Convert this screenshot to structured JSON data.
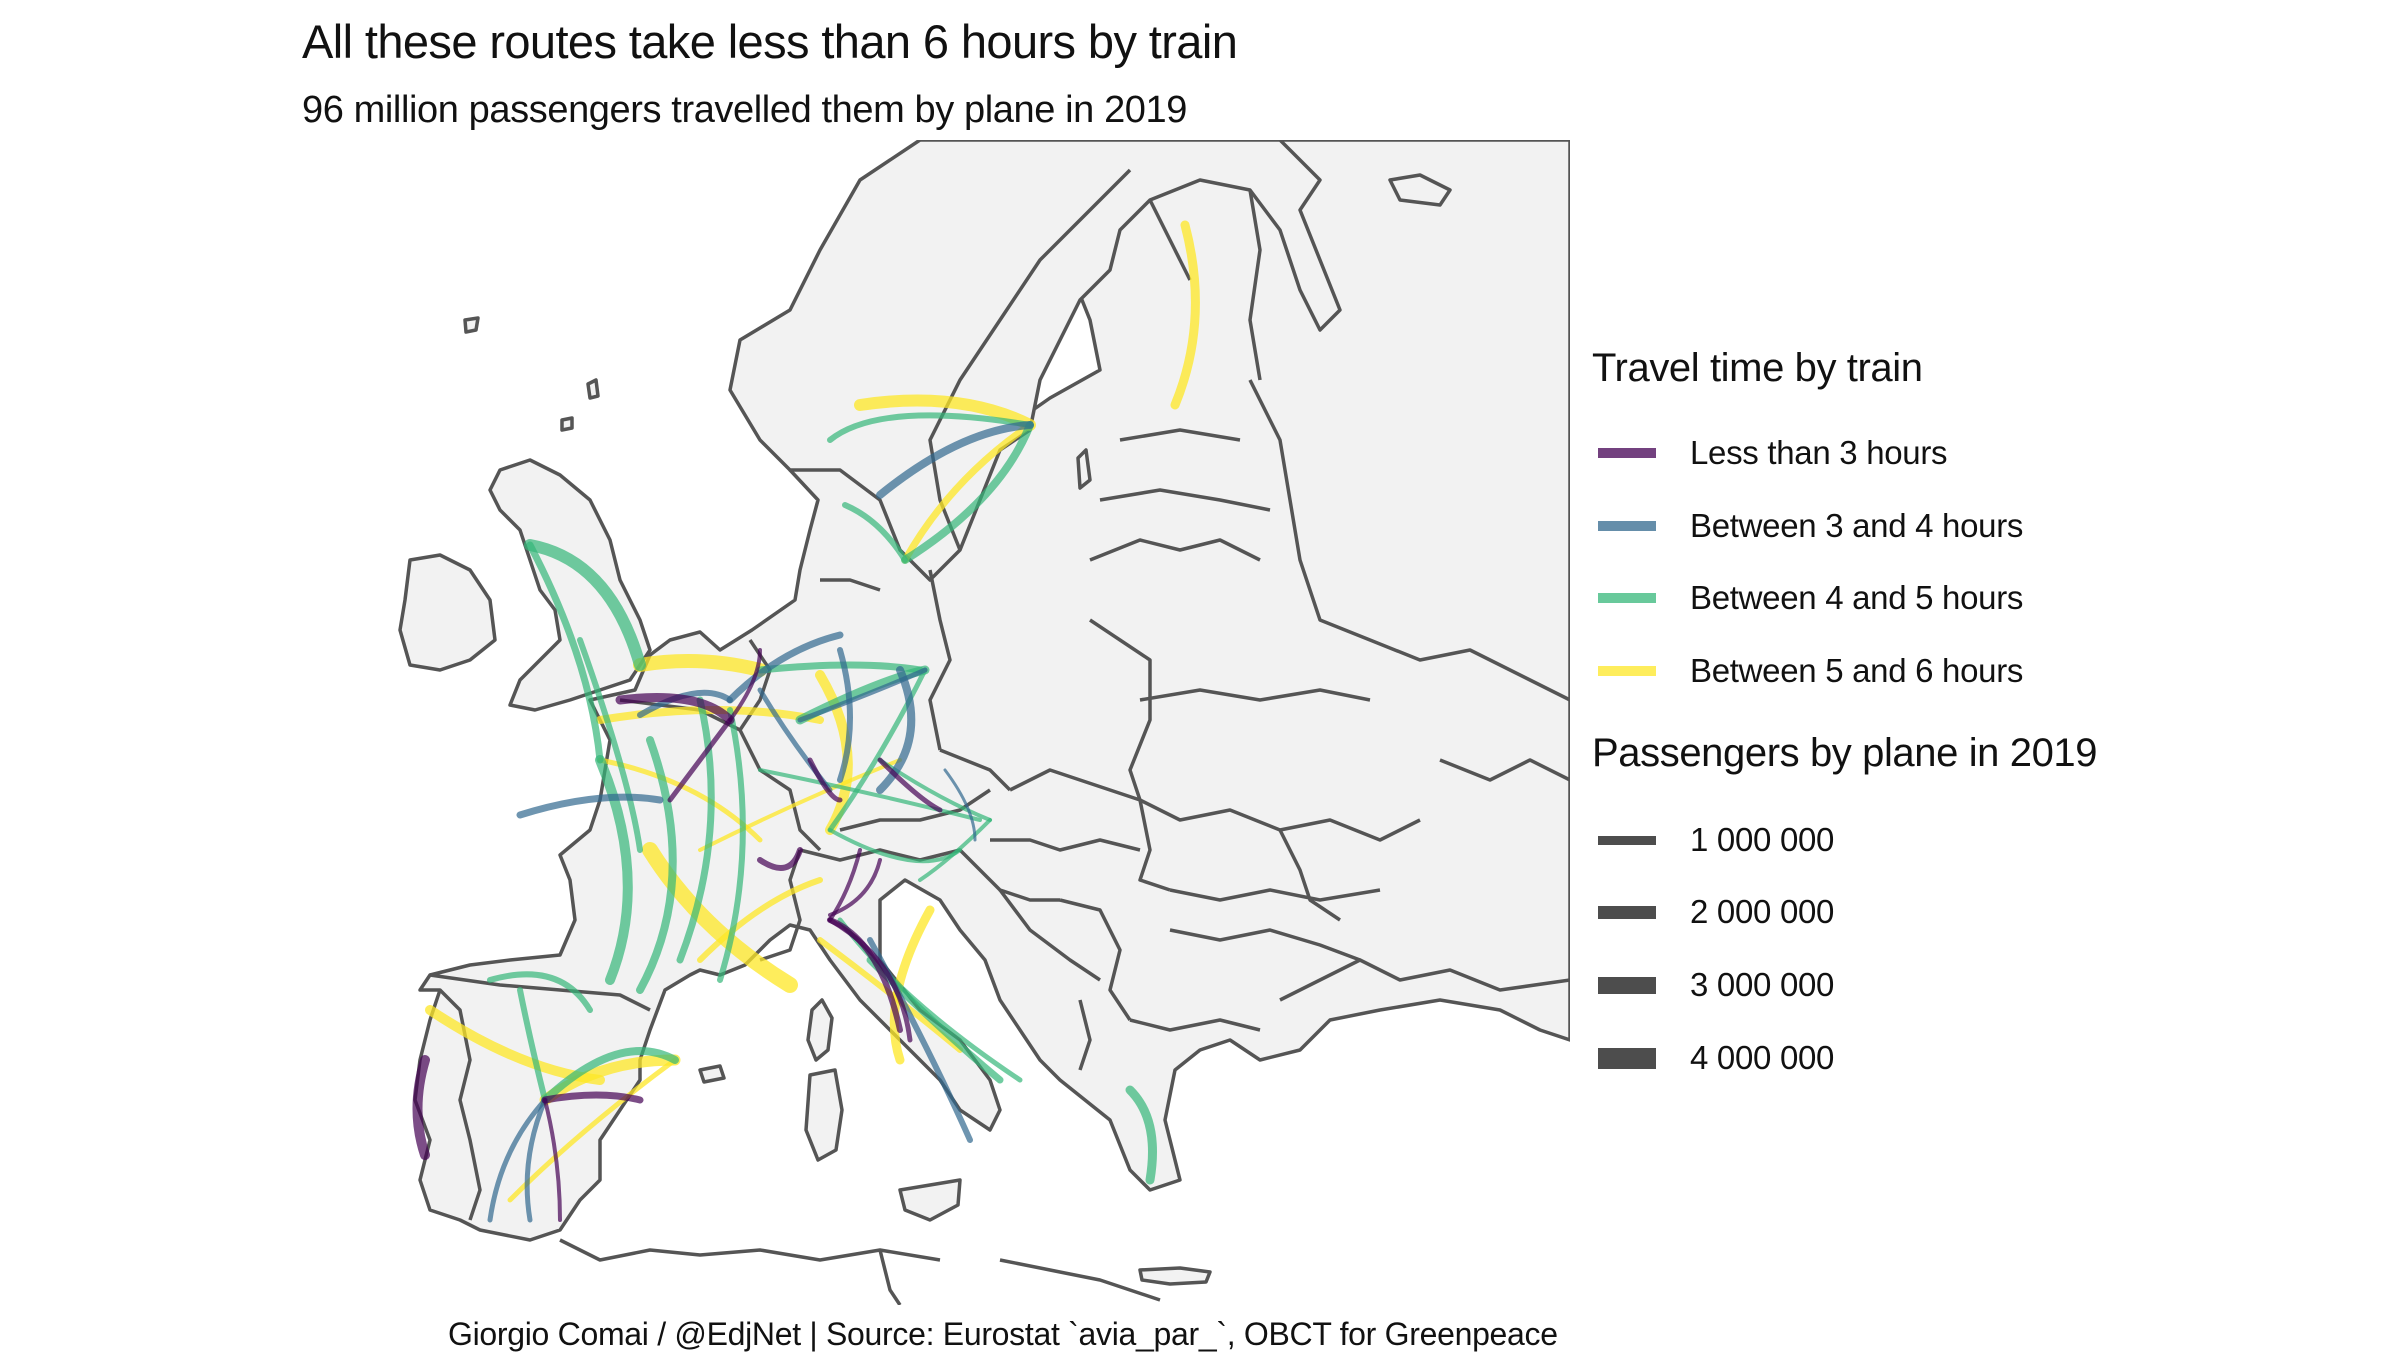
{
  "title": "All these routes take less than 6 hours by train",
  "subtitle": "96 million passengers travelled them by plane in 2019",
  "caption": "Giorgio Comai / @EdjNet | Source: Eurostat `avia_par_`, OBCT for Greenpeace",
  "legend": {
    "color_title": "Travel time by train",
    "color_items": [
      {
        "label": "Less than 3 hours",
        "color": "#440154"
      },
      {
        "label": "Between 3 and 4 hours",
        "color": "#31688e"
      },
      {
        "label": "Between 4 and 5 hours",
        "color": "#35b779"
      },
      {
        "label": "Between 5 and 6 hours",
        "color": "#fde725"
      }
    ],
    "size_title": "Passengers by plane in 2019",
    "size_items": [
      {
        "label": "1 000 000"
      },
      {
        "label": "2 000 000"
      },
      {
        "label": "3 000 000"
      },
      {
        "label": "4 000 000"
      }
    ]
  },
  "colors": {
    "land": "#f2f2f2",
    "border": "#555555",
    "background": "#ffffff"
  }
}
